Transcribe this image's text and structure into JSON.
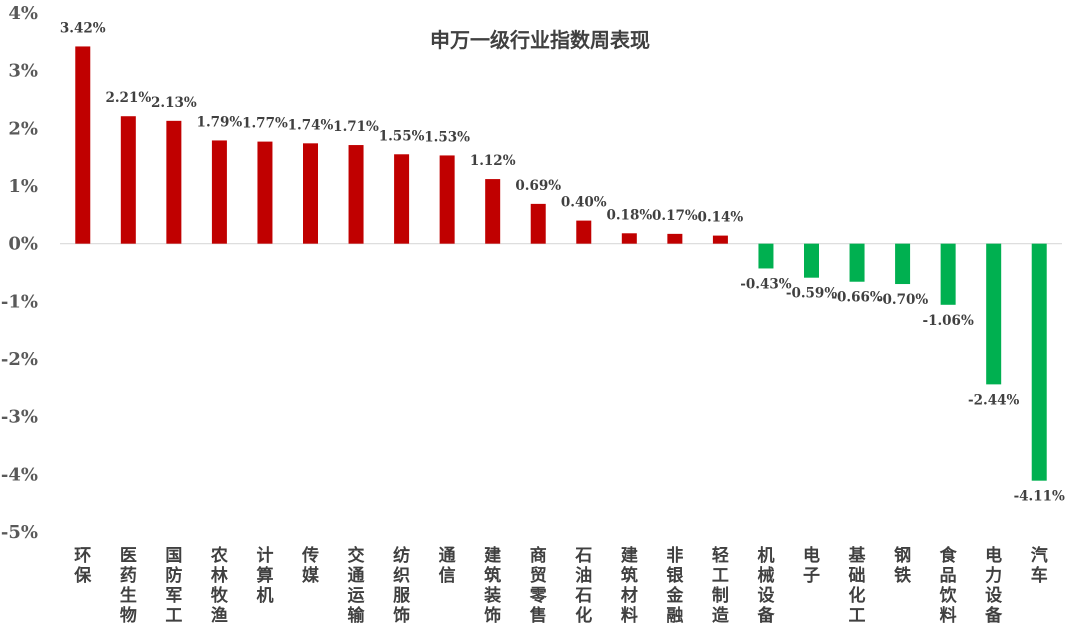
{
  "chart_data": {
    "type": "bar",
    "title": "申万一级行业指数周表现",
    "categories": [
      "环保",
      "医药生物",
      "国防军工",
      "农林牧渔",
      "计算机",
      "传媒",
      "交通运输",
      "纺织服饰",
      "通信",
      "建筑装饰",
      "商贸零售",
      "石油石化",
      "建筑材料",
      "非银金融",
      "轻工制造",
      "机械设备",
      "电子",
      "基础化工",
      "钢铁",
      "食品饮料",
      "电力设备",
      "汽车"
    ],
    "values": [
      3.42,
      2.21,
      2.13,
      1.79,
      1.77,
      1.74,
      1.71,
      1.55,
      1.53,
      1.12,
      0.69,
      0.4,
      0.18,
      0.17,
      0.14,
      -0.43,
      -0.59,
      -0.66,
      -0.7,
      -1.06,
      -2.44,
      -4.11
    ],
    "data_labels": [
      "3.42%",
      "2.21%",
      "2.13%",
      "1.79%",
      "1.77%",
      "1.74%",
      "1.71%",
      "1.55%",
      "1.53%",
      "1.12%",
      "0.69%",
      "0.40%",
      "0.18%",
      "0.17%",
      "0.14%",
      "-0.43%",
      "-0.59%",
      "-0.66%",
      "-0.70%",
      "-1.06%",
      "-2.44%",
      "-4.11%"
    ],
    "y_ticks": [
      4,
      3,
      2,
      1,
      0,
      -1,
      -2,
      -3,
      -4,
      -5
    ],
    "y_tick_labels": [
      "4%",
      "3%",
      "2%",
      "1%",
      "0%",
      "-1%",
      "-2%",
      "-3%",
      "-4%",
      "-5%"
    ],
    "ylim": [
      -5,
      4
    ],
    "xlabel": "",
    "ylabel": "",
    "grid": false,
    "legend": "none",
    "colors": {
      "positive": "#C00000",
      "negative": "#00B050",
      "axis": "#D9D9D9"
    }
  }
}
